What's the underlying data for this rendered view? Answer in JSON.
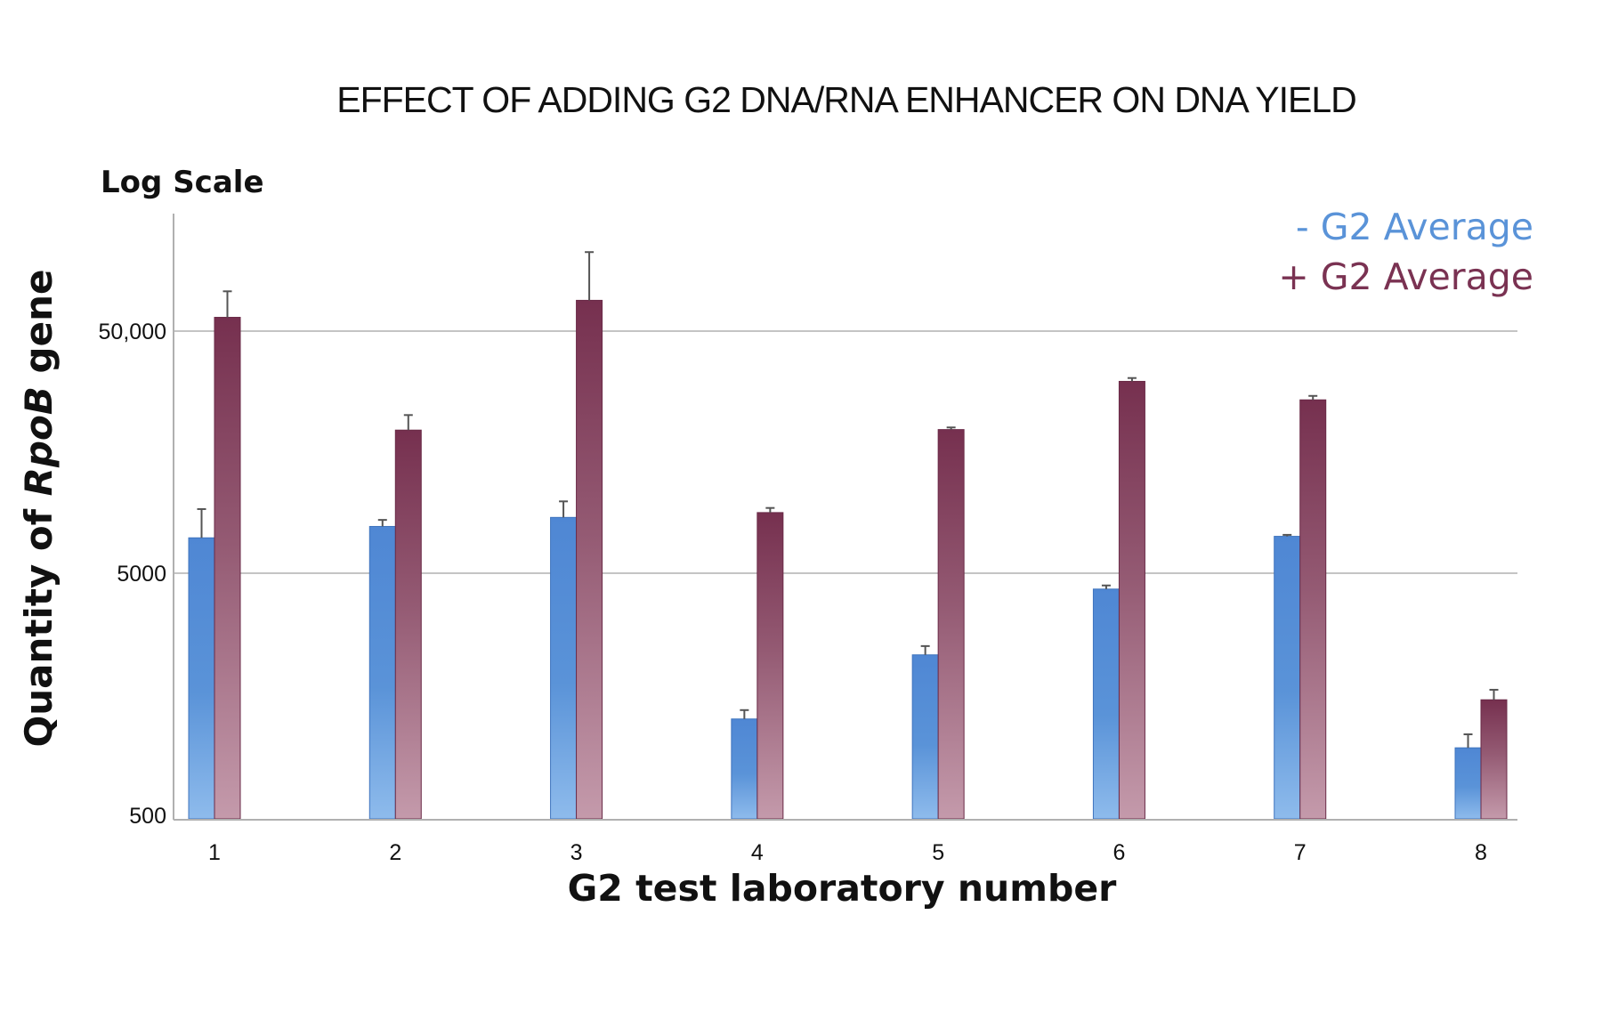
{
  "chart_data": {
    "type": "bar",
    "title": "EFFECT OF ADDING G2 DNA/RNA ENHANCER ON DNA YIELD",
    "scale_note": "Log Scale",
    "ylabel_prefix": "Quantity of ",
    "ylabel_italic": "RpoB",
    "ylabel_suffix": " gene",
    "xlabel": "G2 test laboratory number",
    "yscale": "log",
    "ylim": [
      500,
      150000
    ],
    "yticks": [
      {
        "value": 500,
        "label": "500"
      },
      {
        "value": 5000,
        "label": "5000"
      },
      {
        "value": 50000,
        "label": "50,000"
      }
    ],
    "grid": true,
    "legend_position": "top-right",
    "categories": [
      "1",
      "2",
      "3",
      "4",
      "5",
      "6",
      "7",
      "8"
    ],
    "series": [
      {
        "name": "-  G2 Average",
        "color": "#5a93d8",
        "color_light": "#8ebbec",
        "values": [
          7000,
          7800,
          8500,
          1250,
          2300,
          4300,
          7100,
          950
        ],
        "error_upper": [
          9200,
          8300,
          9900,
          1360,
          2500,
          4450,
          7200,
          1080
        ]
      },
      {
        "name": "+ G2 Average",
        "color": "#7a3252",
        "color_light": "#c49aab",
        "values": [
          57000,
          19500,
          67000,
          8900,
          19600,
          31000,
          26000,
          1500
        ],
        "error_upper": [
          73000,
          22500,
          106000,
          9300,
          20000,
          32000,
          27000,
          1650
        ]
      }
    ]
  }
}
